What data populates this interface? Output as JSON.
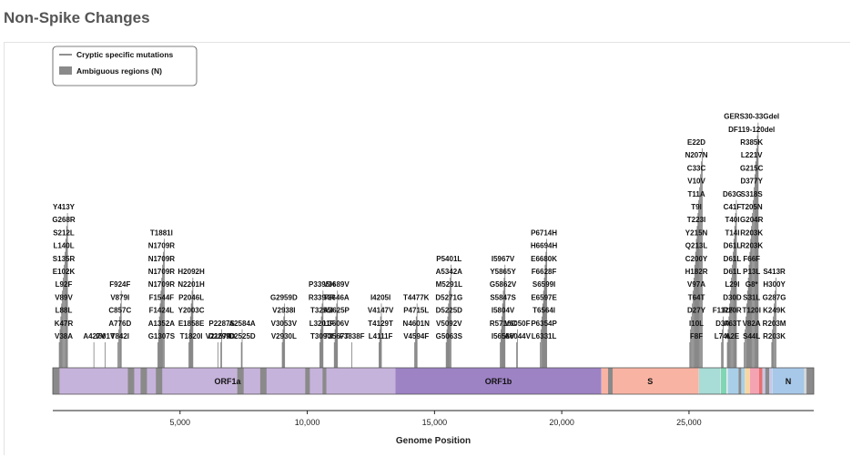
{
  "page": {
    "title": "Non-Spike Changes"
  },
  "chart_data": {
    "type": "genome-mutation-map",
    "xlabel": "Genome Position",
    "xlim": [
      0,
      29903
    ],
    "x_ticks": [
      {
        "value": 5000,
        "label": "5,000"
      },
      {
        "value": 10000,
        "label": "10,000"
      },
      {
        "value": 15000,
        "label": "15,000"
      },
      {
        "value": 20000,
        "label": "20,000"
      },
      {
        "value": 25000,
        "label": "25,000"
      }
    ],
    "legend": [
      {
        "label": "Cryptic specific mutations",
        "marker": "line"
      },
      {
        "label": "Ambiguous regions (N)",
        "marker": "box"
      }
    ],
    "colors": {
      "orf1a": "#c6b3db",
      "orf1b": "#9d82c4",
      "s": "#f9b3a3",
      "ambiguous": "#8a8a8a",
      "mutation_line": "#555555",
      "genome_outline": "#555555"
    },
    "genes": [
      {
        "name": "ORF1a",
        "start": 266,
        "end": 13468,
        "color": "#c6b3db",
        "label": "ORF1a"
      },
      {
        "name": "ORF1b",
        "start": 13468,
        "end": 21555,
        "color": "#9d82c4",
        "label": "ORF1b"
      },
      {
        "name": "S",
        "start": 21563,
        "end": 25384,
        "color": "#f9b3a3",
        "label": "S"
      },
      {
        "name": "ORF3a",
        "start": 25393,
        "end": 26220,
        "color": "#a8dcd6",
        "label": ""
      },
      {
        "name": "E",
        "start": 26245,
        "end": 26472,
        "color": "#7fd6b5",
        "label": ""
      },
      {
        "name": "M",
        "start": 26523,
        "end": 27191,
        "color": "#a9cfe8",
        "label": ""
      },
      {
        "name": "ORF6",
        "start": 27202,
        "end": 27387,
        "color": "#f7d6a0",
        "label": ""
      },
      {
        "name": "ORF7a",
        "start": 27394,
        "end": 27759,
        "color": "#f4a3b3",
        "label": ""
      },
      {
        "name": "ORF7b",
        "start": 27756,
        "end": 27887,
        "color": "#e66f6f",
        "label": ""
      },
      {
        "name": "ORF8",
        "start": 27894,
        "end": 28259,
        "color": "#c7c7e6",
        "label": ""
      },
      {
        "name": "N",
        "start": 28274,
        "end": 29533,
        "color": "#a7c8e8",
        "label": "N"
      },
      {
        "name": "ORF10",
        "start": 29558,
        "end": 29674,
        "color": "#d0d0d0",
        "label": ""
      }
    ],
    "ambiguous_regions": [
      {
        "start": 0,
        "end": 266
      },
      {
        "start": 2950,
        "end": 3200
      },
      {
        "start": 3450,
        "end": 3700
      },
      {
        "start": 4050,
        "end": 4300
      },
      {
        "start": 7250,
        "end": 7500
      },
      {
        "start": 8150,
        "end": 8400
      },
      {
        "start": 9920,
        "end": 10100
      },
      {
        "start": 10600,
        "end": 10750
      },
      {
        "start": 21820,
        "end": 22000
      },
      {
        "start": 26950,
        "end": 27050
      },
      {
        "start": 28000,
        "end": 28150
      },
      {
        "start": 29620,
        "end": 29903
      }
    ],
    "columns": [
      {
        "x": 430,
        "labels": [
          "V38A",
          "K47R",
          "L88L",
          "V89V",
          "L92F",
          "E102K",
          "S135R",
          "L140L",
          "S212L",
          "G268R",
          "Y413Y"
        ]
      },
      {
        "x": 1630,
        "labels": [
          "A427V"
        ]
      },
      {
        "x": 2070,
        "labels": [
          "I601V"
        ]
      },
      {
        "x": 2640,
        "labels": [
          "T842I",
          "A776D",
          "C857C",
          "V879I",
          "F924F"
        ]
      },
      {
        "x": 4270,
        "labels": [
          "G1307S",
          "A1352A",
          "F1424L",
          "F1544F",
          "N1709R",
          "N1709R",
          "N1709R",
          "N1709R",
          "T1881I"
        ]
      },
      {
        "x": 5440,
        "labels": [
          "T1820I",
          "E1858E",
          "Y2003C",
          "P2046L",
          "N2201H",
          "H2092H"
        ]
      },
      {
        "x": 6500,
        "labels": [
          "V2157F"
        ]
      },
      {
        "x": 6640,
        "labels": [
          "D2299D",
          "P2287S"
        ]
      },
      {
        "x": 7440,
        "labels": [
          "D2525D",
          "A2584A"
        ]
      },
      {
        "x": 9080,
        "labels": [
          "V2930L",
          "V3053V",
          "V2938I",
          "G2959D"
        ]
      },
      {
        "x": 10570,
        "labels": [
          "T3090I",
          "L3201F",
          "T3255I",
          "R3394R",
          "P3395H"
        ]
      },
      {
        "x": 11140,
        "labels": [
          "T3567T",
          "L3606V",
          "A3625P",
          "T3646A",
          "V3689V"
        ]
      },
      {
        "x": 11760,
        "labels": [
          "F3838F"
        ]
      },
      {
        "x": 12880,
        "labels": [
          "L4111F",
          "T4129T",
          "V4147V",
          "I4205I"
        ]
      },
      {
        "x": 14280,
        "labels": [
          "V4594F",
          "N4601N",
          "P4715L",
          "T4477K"
        ]
      },
      {
        "x": 15570,
        "labels": [
          "G5063S",
          "V5092V",
          "D5225D",
          "D5271G",
          "M5291L",
          "A5342A",
          "P5401L"
        ]
      },
      {
        "x": 17690,
        "labels": [
          "I5658V",
          "R5716C",
          "I5804V",
          "S5847S",
          "G5862V",
          "Y5865Y",
          "I5967V"
        ]
      },
      {
        "x": 18260,
        "labels": [
          "A6044V",
          "V6050F"
        ]
      },
      {
        "x": 19300,
        "labels": [
          "L6331L",
          "P6354P",
          "T6564I",
          "E6597E",
          "S6599I",
          "F6628F",
          "E6680K",
          "H6694H",
          "P6714H"
        ]
      },
      {
        "x": 25290,
        "labels": [
          "F8F",
          "I10L",
          "D27Y",
          "T64T",
          "V97A",
          "H182R",
          "C200Y",
          "Q213L",
          "Y215N",
          "T223I",
          "T9I",
          "T11A",
          "V10V",
          "C33C",
          "N207N",
          "E22D"
        ]
      },
      {
        "x": 26330,
        "labels": [
          "L74L",
          "D3A",
          "F112F"
        ]
      },
      {
        "x": 26700,
        "labels": [
          "A2E",
          "A63T",
          "R20R",
          "D30D",
          "L29I",
          "D61L",
          "D61L",
          "D61L",
          "T14I",
          "T40I",
          "C41F",
          "D63G"
        ]
      },
      {
        "x": 27460,
        "labels": [
          "S44L",
          "V82A",
          "T120I",
          "S31L",
          "G8*",
          "P13L",
          "F66F",
          "R203K",
          "R203K",
          "G204R",
          "T205N",
          "S318S",
          "D377Y",
          "G215C",
          "L221V",
          "R385K",
          "DF119-120del",
          "GERS30-33Gdel"
        ]
      },
      {
        "x": 28350,
        "labels": [
          "R203K",
          "R203M",
          "K249K",
          "G287G",
          "H300Y",
          "S413R"
        ]
      }
    ]
  }
}
